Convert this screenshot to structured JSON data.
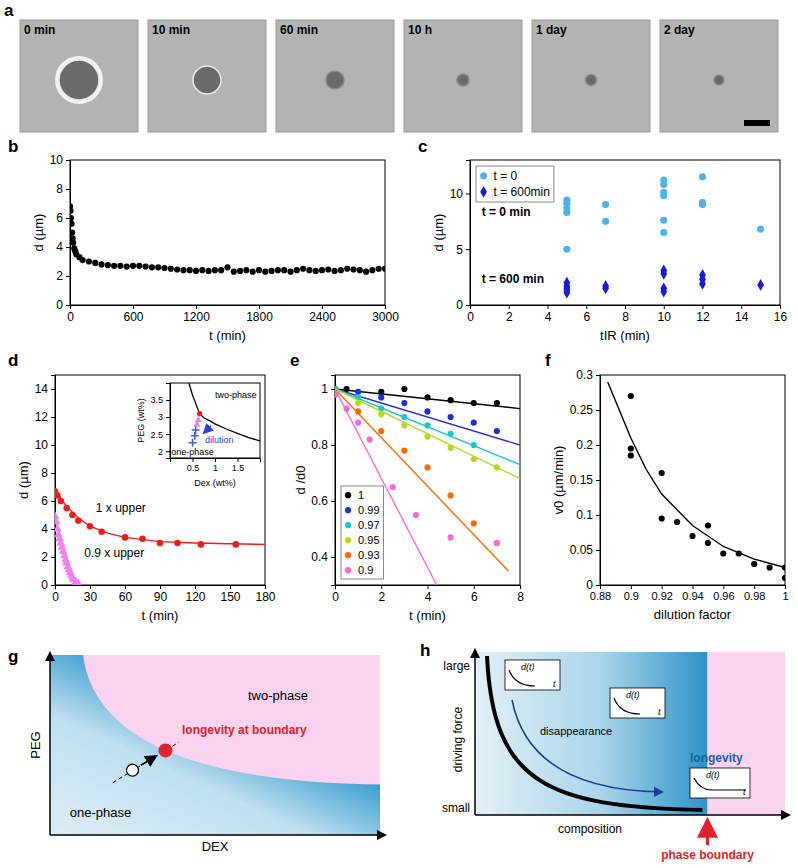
{
  "panel_a": {
    "label": "a",
    "times": [
      "0 min",
      "10 min",
      "60 min",
      "10 h",
      "1 day",
      "2 day"
    ]
  },
  "chart_data": [
    {
      "label": "b",
      "type": "scatter",
      "xlabel": "t (min)",
      "ylabel": "d (µm)",
      "xlim": [
        0,
        3000
      ],
      "xticks": [
        0,
        600,
        1200,
        1800,
        2400,
        3000
      ],
      "ylim": [
        0,
        10
      ],
      "yticks": [
        0,
        2,
        4,
        6,
        8,
        10
      ],
      "series": [
        {
          "color": "#000000",
          "marker": "circle",
          "x": [
            0,
            5,
            10,
            15,
            20,
            25,
            30,
            40,
            50,
            60,
            90,
            120,
            180,
            240,
            300,
            360,
            420,
            480,
            540,
            600,
            660,
            720,
            780,
            840,
            900,
            960,
            1020,
            1080,
            1140,
            1200,
            1260,
            1320,
            1380,
            1440,
            1500,
            1560,
            1620,
            1680,
            1740,
            1800,
            1860,
            1920,
            1980,
            2040,
            2100,
            2160,
            2220,
            2280,
            2340,
            2400,
            2460,
            2520,
            2580,
            2640,
            2700,
            2760,
            2820,
            2880,
            2940,
            3000
          ],
          "values": [
            6.8,
            6.5,
            6.0,
            5.6,
            5.0,
            4.6,
            4.3,
            3.9,
            3.7,
            3.5,
            3.3,
            3.1,
            3.0,
            2.9,
            2.8,
            2.75,
            2.7,
            2.7,
            2.65,
            2.7,
            2.7,
            2.65,
            2.6,
            2.6,
            2.55,
            2.5,
            2.45,
            2.4,
            2.4,
            2.35,
            2.4,
            2.35,
            2.4,
            2.4,
            2.6,
            2.3,
            2.35,
            2.4,
            2.3,
            2.4,
            2.3,
            2.35,
            2.4,
            2.4,
            2.3,
            2.4,
            2.5,
            2.4,
            2.35,
            2.4,
            2.45,
            2.35,
            2.4,
            2.5,
            2.45,
            2.4,
            2.3,
            2.4,
            2.5,
            2.5
          ]
        }
      ]
    },
    {
      "label": "c",
      "type": "scatter",
      "xlabel": "tIR (min)",
      "ylabel": "d (µm)",
      "xlim": [
        0,
        16
      ],
      "xticks": [
        0,
        2,
        4,
        6,
        8,
        10,
        12,
        14,
        16
      ],
      "ylim": [
        0,
        13
      ],
      "yticks": [
        0,
        5,
        10
      ],
      "legend": "top-left",
      "series": [
        {
          "name": "t = 0",
          "color": "#4db3e8",
          "marker": "circle",
          "x": [
            5,
            5,
            5,
            5,
            5,
            7,
            7,
            10,
            10,
            10,
            10,
            10,
            10,
            12,
            12,
            12,
            15
          ],
          "values": [
            9.4,
            9.1,
            8.7,
            8.3,
            5.0,
            9.0,
            7.5,
            11.2,
            10.8,
            10.1,
            9.8,
            7.6,
            6.5,
            11.5,
            9.2,
            9.0,
            6.8
          ]
        },
        {
          "name": "t = 600min",
          "color": "#1a1adb",
          "marker": "diamond",
          "x": [
            5,
            5,
            5,
            5,
            5,
            7,
            7,
            10,
            10,
            10,
            10,
            12,
            12,
            12,
            15
          ],
          "values": [
            2.0,
            1.7,
            1.5,
            1.3,
            1.1,
            1.7,
            1.5,
            3.1,
            2.8,
            1.5,
            1.2,
            2.7,
            2.3,
            1.9,
            1.8
          ]
        }
      ],
      "annotations": [
        {
          "text": "t = 0 min",
          "x": 0.6,
          "y": 8.0
        },
        {
          "text": "t = 600 min",
          "x": 0.6,
          "y": 2.0
        }
      ]
    },
    {
      "label": "d",
      "type": "scatter",
      "xlabel": "t (min)",
      "ylabel": "d (µm)",
      "xlim": [
        0,
        180
      ],
      "xticks": [
        0,
        30,
        60,
        90,
        120,
        150,
        180
      ],
      "ylim": [
        0,
        15
      ],
      "yticks": [
        0,
        2,
        4,
        6,
        8,
        10,
        12,
        14
      ],
      "series": [
        {
          "color": "#ee1c1c",
          "marker": "circle",
          "x": [
            0,
            2,
            5,
            10,
            15,
            20,
            30,
            40,
            60,
            75,
            90,
            105,
            125,
            155
          ],
          "values": [
            6.7,
            6.4,
            6.0,
            5.5,
            5.0,
            4.6,
            4.2,
            3.8,
            3.4,
            3.3,
            3.0,
            3.0,
            2.9,
            2.9
          ],
          "fit_x": [
            0,
            10,
            20,
            30,
            45,
            60,
            90,
            120,
            150,
            180
          ],
          "fit_values": [
            6.8,
            5.6,
            4.8,
            4.2,
            3.7,
            3.4,
            3.1,
            3.0,
            2.95,
            2.9
          ]
        },
        {
          "color": "#ee82ee",
          "marker": "triangle",
          "line_style": "solid",
          "x": [
            0,
            1,
            2,
            3,
            4,
            5,
            6,
            7,
            8,
            9,
            10,
            11,
            12,
            13,
            14,
            15,
            16,
            18,
            20
          ],
          "values": [
            4.9,
            4.5,
            4.0,
            3.6,
            3.3,
            3.0,
            2.7,
            2.4,
            2.1,
            1.8,
            1.6,
            1.3,
            1.1,
            0.9,
            0.7,
            0.5,
            0.4,
            0.2,
            0.1
          ]
        }
      ],
      "annotations": [
        {
          "text": "1 x upper",
          "x": 35,
          "y": 5.2
        },
        {
          "text": "0.9 x upper",
          "x": 25,
          "y": 2.0
        }
      ]
    },
    {
      "type": "scatter",
      "xlabel": "Dex (wt%)",
      "ylabel": "PEG (wt%)",
      "xlim": [
        0,
        2
      ],
      "xticks": [
        0.5,
        1,
        1.5
      ],
      "ylim": [
        1.8,
        4
      ],
      "yticks": [
        2,
        2.5,
        3,
        3.5
      ],
      "series": [
        {
          "type": "line",
          "color": "#000000",
          "x": [
            0.42,
            0.5,
            0.6,
            0.66,
            0.75,
            0.9,
            1.0,
            1.25,
            1.5,
            1.75,
            2.0
          ],
          "values": [
            4.0,
            3.65,
            3.3,
            3.1,
            2.98,
            2.88,
            2.8,
            2.65,
            2.52,
            2.4,
            2.3
          ]
        },
        {
          "color": "#ee1c1c",
          "marker": "circle",
          "x": [
            0.66
          ],
          "values": [
            3.1
          ]
        },
        {
          "color": "#ee82ee",
          "marker": "triangle",
          "x": [
            0.63,
            0.6
          ],
          "values": [
            2.92,
            2.78
          ]
        },
        {
          "color": "#3a5fe0",
          "marker": "plus",
          "x": [
            0.57,
            0.55,
            0.5
          ],
          "values": [
            2.62,
            2.45,
            2.25
          ]
        }
      ],
      "annotations": [
        {
          "text": "two-phase",
          "x": 1.0,
          "y": 3.55
        },
        {
          "text": "one-phase",
          "x": 0.03,
          "y": 1.88
        },
        {
          "text": "dilution",
          "x": 0.78,
          "y": 2.25
        }
      ]
    },
    {
      "label": "e",
      "type": "scatter",
      "xlabel": "t (min)",
      "ylabel": "d /d0",
      "xlim": [
        0,
        8
      ],
      "xticks": [
        0,
        2,
        4,
        6,
        8
      ],
      "ylim": [
        0.3,
        1.05
      ],
      "yticks": [
        0.4,
        0.6,
        0.8,
        1
      ],
      "legend": "bottom-left",
      "series": [
        {
          "name": "1",
          "color": "#000000",
          "marker": "circle",
          "x": [
            0,
            0.5,
            2,
            3,
            4,
            5,
            6,
            7
          ],
          "values": [
            1.0,
            1.0,
            0.99,
            1.0,
            0.97,
            0.96,
            0.95,
            0.95
          ],
          "fit_x": [
            0,
            8
          ],
          "fit_values": [
            1.0,
            0.93
          ]
        },
        {
          "name": "0.99",
          "color": "#1f2fe0",
          "marker": "circle",
          "x": [
            0,
            1,
            2,
            3,
            4,
            5,
            6,
            7
          ],
          "values": [
            1.0,
            0.99,
            0.97,
            0.95,
            0.92,
            0.9,
            0.88,
            0.85
          ],
          "fit_x": [
            0,
            8
          ],
          "fit_values": [
            1.0,
            0.8
          ]
        },
        {
          "name": "0.97",
          "color": "#19c9c9",
          "marker": "circle",
          "x": [
            0,
            1,
            2,
            3,
            4,
            5,
            6
          ],
          "values": [
            1.0,
            0.97,
            0.93,
            0.9,
            0.87,
            0.84,
            0.8
          ],
          "fit_x": [
            0,
            8
          ],
          "fit_values": [
            1.0,
            0.73
          ]
        },
        {
          "name": "0.95",
          "color": "#b4dc1e",
          "marker": "circle",
          "x": [
            0,
            1,
            2,
            3,
            4,
            5,
            6,
            7
          ],
          "values": [
            0.99,
            0.95,
            0.91,
            0.87,
            0.83,
            0.79,
            0.75,
            0.72
          ],
          "fit_x": [
            0,
            8
          ],
          "fit_values": [
            1.0,
            0.68
          ]
        },
        {
          "name": "0.93",
          "color": "#ff6a00",
          "marker": "circle",
          "x": [
            0,
            1,
            2,
            3,
            4,
            5,
            6,
            7
          ],
          "values": [
            0.98,
            0.92,
            0.85,
            0.78,
            0.72,
            0.62,
            0.52,
            0.45
          ],
          "fit_x": [
            0,
            7.5
          ],
          "fit_values": [
            1.0,
            0.35
          ]
        },
        {
          "name": "0.9",
          "color": "#ff66dd",
          "marker": "circle",
          "x": [
            0,
            0.5,
            1,
            1.5,
            2.5,
            3.5,
            5,
            7
          ],
          "values": [
            0.98,
            0.93,
            0.88,
            0.82,
            0.65,
            0.55,
            0.47,
            0.45
          ],
          "fit_x": [
            0,
            4.4
          ],
          "fit_values": [
            1.0,
            0.3
          ]
        }
      ]
    },
    {
      "label": "f",
      "type": "scatter",
      "xlabel": "dilution factor",
      "ylabel": "v0 (µm/min)",
      "xlim": [
        0.88,
        1.0
      ],
      "xticks": [
        0.88,
        0.9,
        0.92,
        0.94,
        0.96,
        0.98,
        1
      ],
      "ylim": [
        0,
        0.3
      ],
      "yticks": [
        0,
        0.05,
        0.1,
        0.15,
        0.2,
        0.25,
        0.3
      ],
      "series": [
        {
          "color": "#000000",
          "marker": "circle",
          "x": [
            0.9,
            0.9,
            0.9,
            0.92,
            0.92,
            0.93,
            0.94,
            0.95,
            0.95,
            0.96,
            0.97,
            0.98,
            0.99,
            1.0,
            1.0
          ],
          "values": [
            0.27,
            0.195,
            0.185,
            0.16,
            0.095,
            0.09,
            0.07,
            0.085,
            0.06,
            0.045,
            0.045,
            0.03,
            0.025,
            0.025,
            0.01
          ],
          "fit_x": [
            0.885,
            0.9,
            0.91,
            0.92,
            0.94,
            0.96,
            0.98,
            1.0
          ],
          "fit_values": [
            0.29,
            0.21,
            0.165,
            0.13,
            0.085,
            0.055,
            0.037,
            0.025
          ]
        }
      ]
    }
  ],
  "panel_g": {
    "label": "g",
    "y_axis": "PEG",
    "x_axis": "DEX",
    "region_upper": "two-phase",
    "region_lower": "one-phase",
    "point_label": "longevity at boundary"
  },
  "panel_h": {
    "label": "h",
    "y_axis": "driving force",
    "y_high": "large",
    "y_low": "small",
    "x_axis": "composition",
    "boundary": "phase boundary",
    "path_label": "disappearance",
    "end_label": "longevity",
    "insets": [
      {
        "y": "d(t)",
        "x": "t"
      },
      {
        "y": "d(t)",
        "x": "t"
      },
      {
        "y": "d(t)",
        "x": "t"
      }
    ]
  }
}
